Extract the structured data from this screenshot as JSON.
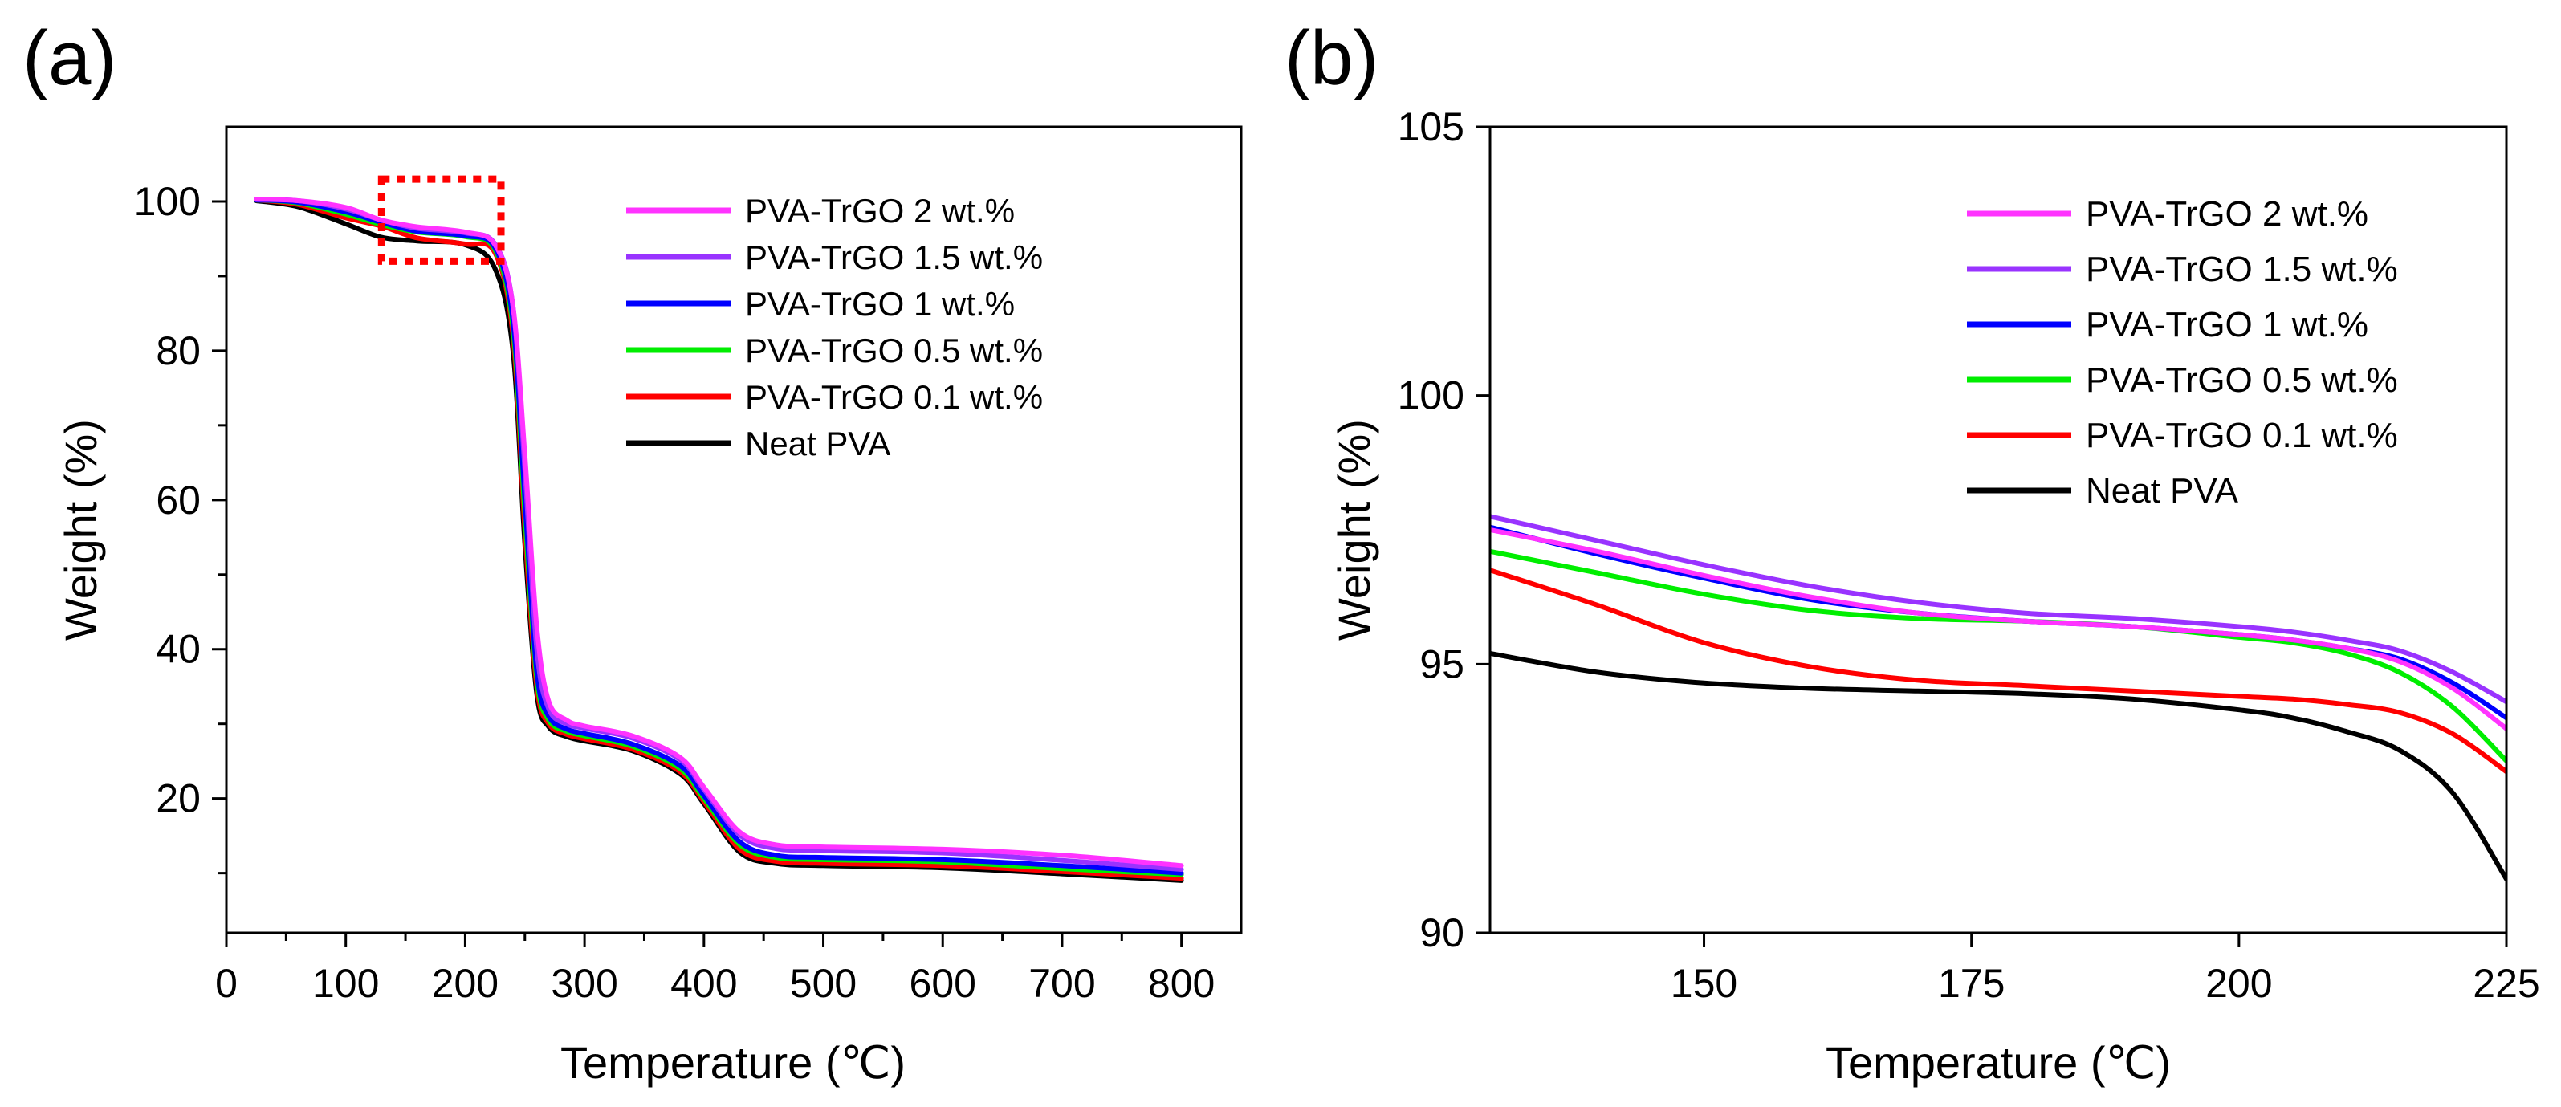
{
  "chart_data": [
    {
      "panel_label": "(a)",
      "type": "line",
      "xlabel": "Temperature (℃)",
      "ylabel": "Weight (%)",
      "xlim": [
        0,
        850
      ],
      "ylim": [
        2,
        110
      ],
      "xticks": [
        0,
        100,
        200,
        300,
        400,
        500,
        600,
        700,
        800
      ],
      "yticks": [
        20,
        40,
        60,
        80,
        100
      ],
      "legend_position": "top-right",
      "annotation": "red dotted zoom box over 130–230 ℃, 92–103 %",
      "zoom_box": {
        "x": [
          130,
          230
        ],
        "y": [
          92,
          103
        ]
      },
      "series": [
        {
          "name": "PVA-TrGO 2 wt.%",
          "color": "#ff33ff",
          "x": [
            25,
            60,
            100,
            130,
            160,
            200,
            225,
            240,
            250,
            260,
            270,
            285,
            300,
            340,
            380,
            400,
            430,
            460,
            500,
            600,
            700,
            800
          ],
          "y": [
            100.3,
            100.1,
            99.2,
            97.5,
            96.6,
            95.9,
            94.2,
            86,
            66,
            43,
            33,
            30.5,
            29.7,
            28.4,
            25.5,
            21.5,
            15.5,
            13.8,
            13.5,
            13.2,
            12.4,
            11
          ]
        },
        {
          "name": "PVA-TrGO 1.5 wt.%",
          "color": "#9933ff",
          "x": [
            25,
            60,
            100,
            130,
            160,
            200,
            225,
            240,
            250,
            260,
            270,
            285,
            300,
            340,
            380,
            400,
            430,
            460,
            500,
            600,
            700,
            800
          ],
          "y": [
            100.3,
            100.1,
            99,
            97.5,
            96.4,
            95.8,
            94.3,
            86,
            64,
            40,
            32,
            30,
            29.4,
            28.1,
            25.2,
            21.2,
            15.1,
            13.3,
            13,
            12.7,
            11.7,
            10.5
          ]
        },
        {
          "name": "PVA-TrGO 1 wt.%",
          "color": "#0000ff",
          "x": [
            25,
            60,
            100,
            130,
            160,
            200,
            225,
            240,
            250,
            260,
            270,
            285,
            300,
            340,
            380,
            400,
            430,
            460,
            500,
            600,
            700,
            800
          ],
          "y": [
            100.2,
            99.9,
            98.6,
            97.2,
            96,
            95.4,
            93.8,
            84,
            60,
            37,
            31,
            29.3,
            28.7,
            27.3,
            24.4,
            20.4,
            14.2,
            12.4,
            12.1,
            11.8,
            11,
            10
          ]
        },
        {
          "name": "PVA-TrGO 0.5 wt.%",
          "color": "#00ee00",
          "x": [
            25,
            60,
            100,
            130,
            160,
            200,
            225,
            240,
            250,
            260,
            270,
            285,
            300,
            340,
            380,
            400,
            430,
            460,
            500,
            600,
            700,
            800
          ],
          "y": [
            100.2,
            99.8,
            98.3,
            96.9,
            95.9,
            95.3,
            93.5,
            83,
            58,
            36,
            30.5,
            29,
            28.4,
            27,
            24,
            20,
            13.8,
            12.1,
            11.8,
            11.5,
            10.6,
            9.8
          ]
        },
        {
          "name": "PVA-TrGO 0.1 wt.%",
          "color": "#ff0000",
          "x": [
            25,
            60,
            100,
            130,
            160,
            200,
            225,
            240,
            250,
            260,
            270,
            285,
            300,
            340,
            380,
            400,
            430,
            460,
            500,
            600,
            700,
            800
          ],
          "y": [
            100.2,
            99.6,
            97.8,
            96.7,
            95.1,
            94.3,
            93.1,
            82,
            56,
            35,
            30,
            28.6,
            28,
            26.6,
            23.6,
            19.6,
            13.2,
            11.6,
            11.3,
            11,
            10.2,
            9.3
          ]
        },
        {
          "name": "Neat PVA",
          "color": "#000000",
          "x": [
            25,
            60,
            100,
            130,
            160,
            200,
            225,
            240,
            250,
            260,
            270,
            285,
            300,
            340,
            380,
            400,
            430,
            460,
            500,
            600,
            700,
            800
          ],
          "y": [
            100.1,
            99.3,
            97,
            95.2,
            94.7,
            94.2,
            91,
            80,
            54,
            34,
            29.6,
            28.3,
            27.7,
            26.4,
            23.3,
            19.3,
            12.8,
            11.3,
            11,
            10.7,
            9.9,
            9
          ]
        }
      ]
    },
    {
      "panel_label": "(b)",
      "type": "line",
      "xlabel": "Temperature (℃)",
      "ylabel": "Weight (%)",
      "xlim": [
        130,
        225
      ],
      "ylim": [
        90,
        105
      ],
      "xticks": [
        150,
        175,
        200,
        225
      ],
      "yticks": [
        90,
        95,
        100,
        105
      ],
      "legend_position": "top-right",
      "series": [
        {
          "name": "PVA-TrGO 2 wt.%",
          "color": "#ff33ff",
          "x": [
            130,
            140,
            150,
            160,
            170,
            180,
            190,
            200,
            205,
            210,
            215,
            220,
            225
          ],
          "y": [
            97.5,
            97.1,
            96.65,
            96.25,
            95.95,
            95.8,
            95.7,
            95.55,
            95.45,
            95.3,
            95.05,
            94.55,
            93.8
          ]
        },
        {
          "name": "PVA-TrGO 1.5 wt.%",
          "color": "#9933ff",
          "x": [
            130,
            140,
            150,
            160,
            170,
            180,
            190,
            200,
            205,
            210,
            215,
            220,
            225
          ],
          "y": [
            97.75,
            97.3,
            96.85,
            96.45,
            96.15,
            95.95,
            95.85,
            95.7,
            95.6,
            95.45,
            95.25,
            94.85,
            94.3
          ]
        },
        {
          "name": "PVA-TrGO 1 wt.%",
          "color": "#0000ff",
          "x": [
            130,
            140,
            150,
            160,
            170,
            180,
            190,
            200,
            205,
            210,
            215,
            220,
            225
          ],
          "y": [
            97.55,
            97.05,
            96.6,
            96.2,
            95.95,
            95.8,
            95.7,
            95.55,
            95.45,
            95.3,
            95.1,
            94.65,
            94
          ]
        },
        {
          "name": "PVA-TrGO 0.5 wt.%",
          "color": "#00ee00",
          "x": [
            130,
            140,
            150,
            160,
            170,
            180,
            190,
            200,
            205,
            210,
            215,
            220,
            225
          ],
          "y": [
            97.1,
            96.7,
            96.3,
            96,
            95.85,
            95.8,
            95.7,
            95.5,
            95.4,
            95.2,
            94.85,
            94.2,
            93.2
          ]
        },
        {
          "name": "PVA-TrGO 0.1 wt.%",
          "color": "#ff0000",
          "x": [
            130,
            140,
            150,
            160,
            170,
            180,
            190,
            200,
            205,
            210,
            215,
            220,
            225
          ],
          "y": [
            96.75,
            96.1,
            95.4,
            94.95,
            94.7,
            94.6,
            94.5,
            94.4,
            94.35,
            94.25,
            94.1,
            93.7,
            93
          ]
        },
        {
          "name": "Neat PVA",
          "color": "#000000",
          "x": [
            130,
            140,
            150,
            160,
            170,
            180,
            190,
            200,
            205,
            210,
            215,
            220,
            225
          ],
          "y": [
            95.2,
            94.85,
            94.65,
            94.55,
            94.5,
            94.45,
            94.35,
            94.15,
            94,
            93.75,
            93.4,
            92.6,
            91
          ]
        }
      ]
    }
  ]
}
